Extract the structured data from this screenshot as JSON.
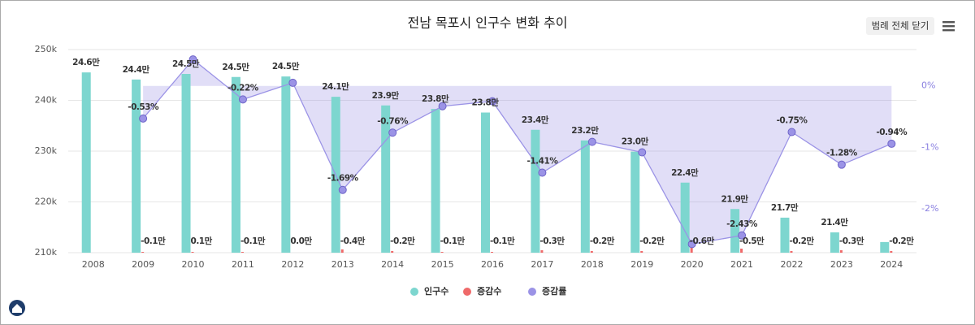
{
  "chart_data": {
    "type": "bar-line",
    "title": "전남 목포시 인구수 변화 추이",
    "legend_button": "범례 전체 닫기",
    "categories": [
      "2008",
      "2009",
      "2010",
      "2011",
      "2012",
      "2013",
      "2014",
      "2015",
      "2016",
      "2017",
      "2018",
      "2019",
      "2020",
      "2021",
      "2022",
      "2023",
      "2024"
    ],
    "ylim": [
      210000,
      250000
    ],
    "yticks": [
      {
        "value": 210000,
        "label": "210k"
      },
      {
        "value": 220000,
        "label": "220k"
      },
      {
        "value": 230000,
        "label": "230k"
      },
      {
        "value": 240000,
        "label": "240k"
      },
      {
        "value": 250000,
        "label": "250k"
      }
    ],
    "y2lim": [
      -2.71,
      0.59
    ],
    "y2ticks": [
      {
        "value": 0,
        "label": "0%"
      },
      {
        "value": -1,
        "label": "-1%"
      },
      {
        "value": -2,
        "label": "-2%"
      }
    ],
    "grid": true,
    "legend_position": "bottom",
    "series": [
      {
        "name": "인구수",
        "color": "#7dd6cf",
        "kind": "bar",
        "values": [
          245500,
          244100,
          245200,
          244600,
          244700,
          240700,
          239000,
          238300,
          237600,
          234200,
          232100,
          229900,
          223800,
          218600,
          216900,
          214000,
          212100
        ],
        "value_labels": [
          "24.6만",
          "24.4만",
          "24.5만",
          "24.5만",
          "24.5만",
          "24.1만",
          "23.9만",
          "23.8만",
          "23.8만",
          "23.4만",
          "23.2만",
          "23.0만",
          "22.4만",
          "21.9만",
          "21.7만",
          "21.4만",
          null
        ]
      },
      {
        "name": "증감수",
        "color": "#ef6a6a",
        "kind": "change",
        "values": [
          null,
          -1000,
          1000,
          -1000,
          0,
          -4000,
          -2000,
          -1000,
          -1000,
          -3000,
          -2000,
          -2000,
          -6000,
          -5000,
          -2000,
          -3000,
          -2000
        ],
        "value_labels": [
          null,
          "-0.1만",
          "0.1만",
          "-0.1만",
          "0.0만",
          "-0.4만",
          "-0.2만",
          "-0.1만",
          "-0.1만",
          "-0.3만",
          "-0.2만",
          "-0.2만",
          "-0.6만",
          "-0.5만",
          "-0.2만",
          "-0.3만",
          "-0.2만"
        ]
      },
      {
        "name": "증감률",
        "color": "#9b93e6",
        "kind": "line",
        "axis": "y2",
        "values": [
          null,
          -0.53,
          0.43,
          -0.22,
          0.05,
          -1.69,
          -0.76,
          -0.33,
          -0.25,
          -1.41,
          -0.91,
          -1.08,
          -2.57,
          -2.43,
          -0.75,
          -1.28,
          -0.94
        ],
        "value_labels": [
          null,
          "-0.53%",
          null,
          "-0.22%",
          null,
          "-1.69%",
          "-0.76%",
          null,
          null,
          "-1.41%",
          null,
          null,
          null,
          "-2.43%",
          "-0.75%",
          "-1.28%",
          "-0.94%"
        ]
      }
    ]
  }
}
